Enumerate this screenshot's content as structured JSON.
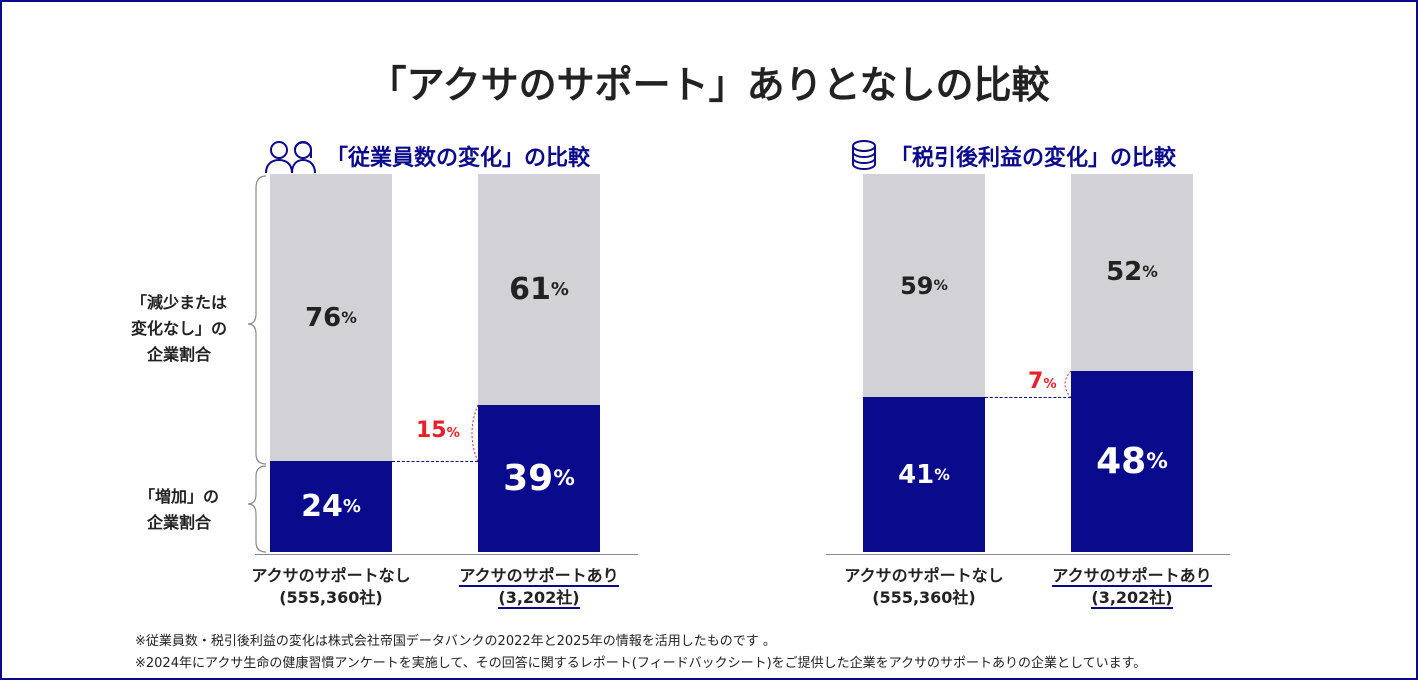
{
  "title": "「アクサのサポート」ありとなしの比較",
  "colors": {
    "navy": "#0a0a8c",
    "gray": "#d2d2d6",
    "red": "#e8202a"
  },
  "chart_data": [
    {
      "type": "bar",
      "stacked": true,
      "title": "「従業員数の変化」の比較",
      "icon": "people-icon",
      "categories": [
        "アクサのサポートなし",
        "アクサのサポートあり"
      ],
      "category_sub": [
        "(555,360社)",
        "(3,202社)"
      ],
      "series": [
        {
          "name": "「増加」の企業割合",
          "values": [
            24,
            39
          ],
          "labels": [
            "24%",
            "39%"
          ]
        },
        {
          "name": "「減少または変化なし」の企業割合",
          "values": [
            76,
            61
          ],
          "labels": [
            "76%",
            "61%"
          ]
        }
      ],
      "difference": "15%",
      "ylim": [
        0,
        100
      ]
    },
    {
      "type": "bar",
      "stacked": true,
      "title": "「税引後利益の変化」の比較",
      "icon": "coins-icon",
      "categories": [
        "アクサのサポートなし",
        "アクサのサポートあり"
      ],
      "category_sub": [
        "(555,360社)",
        "(3,202社)"
      ],
      "series": [
        {
          "values": [
            41,
            48
          ],
          "labels": [
            "41%",
            "48%"
          ]
        },
        {
          "values": [
            59,
            52
          ],
          "labels": [
            "59%",
            "52%"
          ]
        }
      ],
      "difference": "7%",
      "ylim": [
        0,
        100
      ]
    }
  ],
  "legend_left": {
    "top": [
      "「減少または",
      "変化なし」の",
      "企業割合"
    ],
    "bottom": [
      "「増加」の",
      "企業割合"
    ]
  },
  "notes": [
    "※従業員数・税引後利益の変化は株式会社帝国データバンクの2022年と2025年の情報を活用したものです 。",
    "※2024年にアクサ生命の健康習慣アンケートを実施して、その回答に関するレポート(フィードバックシート)をご提供した企業をアクサのサポートありの企業としています。"
  ]
}
